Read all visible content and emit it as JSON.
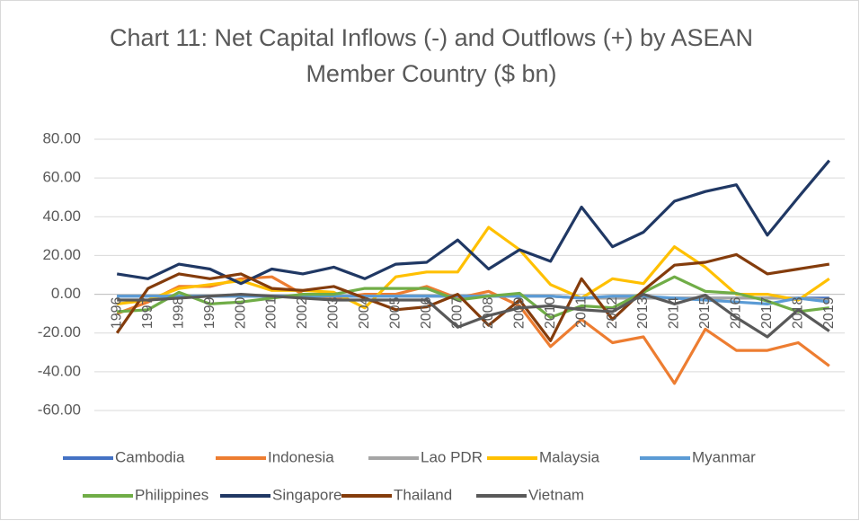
{
  "chart_data": {
    "type": "line",
    "title": "Chart 11: Net Capital Inflows (-) and Outflows (+) by ASEAN Member Country ($ bn)",
    "categories": [
      "1996",
      "1997",
      "1998",
      "1999",
      "2000",
      "2001",
      "2002",
      "2003",
      "2004",
      "2005",
      "2006",
      "2007",
      "2008",
      "2009",
      "2010",
      "2011",
      "2012",
      "2013",
      "2014",
      "2015",
      "2016",
      "2017",
      "2018",
      "2019"
    ],
    "ylim": [
      -60,
      80
    ],
    "yticks": [
      {
        "value": -60,
        "label": "-60.00"
      },
      {
        "value": -40,
        "label": "-40.00"
      },
      {
        "value": -20,
        "label": "-20.00"
      },
      {
        "value": 0,
        "label": "0.00"
      },
      {
        "value": 20,
        "label": "20.00"
      },
      {
        "value": 40,
        "label": "40.00"
      },
      {
        "value": 60,
        "label": "60.00"
      },
      {
        "value": 80,
        "label": "80.00"
      }
    ],
    "grid": true,
    "legend": "bottom",
    "series": [
      {
        "name": "Cambodia",
        "color": "#4472c4",
        "values": [
          -1,
          -1,
          -1,
          -1,
          -1,
          -1,
          -1,
          -1,
          -1,
          -1,
          -1,
          -1,
          -1,
          -1,
          -1,
          -2,
          -2,
          -2,
          -2,
          -2,
          -2,
          -2,
          -2,
          -2
        ]
      },
      {
        "name": "Indonesia",
        "color": "#ed7d31",
        "values": [
          -10,
          -4,
          4,
          4,
          8,
          9,
          0,
          -2,
          0,
          0,
          4,
          -2,
          1.5,
          -6,
          -27,
          -13,
          -25,
          -22,
          -46,
          -18,
          -29,
          -29,
          -25,
          -37
        ]
      },
      {
        "name": "Lao PDR",
        "color": "#a5a5a5",
        "values": [
          -1,
          -1,
          -1,
          -1,
          -1,
          -1,
          -1,
          -1,
          -1,
          -1,
          -1,
          -1,
          -1,
          -1,
          -1,
          -2,
          -2,
          -2,
          -2,
          -2,
          -2,
          -2,
          -2,
          -3
        ]
      },
      {
        "name": "Malaysia",
        "color": "#ffc000",
        "values": [
          -5,
          -3,
          3,
          5,
          7,
          2,
          2,
          1,
          -7,
          9,
          11.5,
          11.5,
          34.5,
          23,
          5,
          -2,
          8,
          5.5,
          24.5,
          14,
          0,
          0,
          -3,
          8
        ]
      },
      {
        "name": "Myanmar",
        "color": "#5b9bd5",
        "values": [
          -1,
          -1,
          -1,
          -1,
          -1,
          -1,
          -1,
          -1,
          -1,
          -1,
          -1,
          -1,
          -1,
          -1,
          -1,
          -2,
          -1,
          -1,
          -2,
          -3,
          -4,
          -5,
          -2,
          -4
        ]
      },
      {
        "name": "Philippines",
        "color": "#70ad47",
        "values": [
          -9,
          -8,
          1,
          -5,
          -4,
          -2,
          0,
          0,
          3,
          3,
          3,
          -3,
          -1,
          0.5,
          -12,
          -6,
          -7,
          1,
          9,
          1.5,
          0.5,
          -3.5,
          -9,
          -7
        ]
      },
      {
        "name": "Singapore",
        "color": "#203864",
        "values": [
          10.5,
          8,
          15.5,
          13,
          5.5,
          13,
          10.5,
          14,
          8,
          15.5,
          16.5,
          28,
          13,
          23,
          17,
          45,
          24.5,
          32,
          48,
          53,
          56.5,
          30.5,
          50,
          69
        ]
      },
      {
        "name": "Thailand",
        "color": "#843c0c",
        "values": [
          -20,
          3,
          10.5,
          8,
          10.5,
          3,
          2,
          4,
          -2,
          -8,
          -6.5,
          0,
          -16,
          -3,
          -24,
          8,
          -13,
          2,
          15,
          16.5,
          20.5,
          10.5,
          13,
          15.5
        ]
      },
      {
        "name": "Vietnam",
        "color": "#595959",
        "values": [
          -3,
          -3,
          -2,
          -1,
          0,
          -1,
          -2,
          -3,
          -3,
          -3,
          -3,
          -17,
          -11,
          -7,
          -6,
          -8,
          -9,
          0,
          -5,
          -0.5,
          -12,
          -22,
          -8,
          -19
        ]
      }
    ]
  }
}
